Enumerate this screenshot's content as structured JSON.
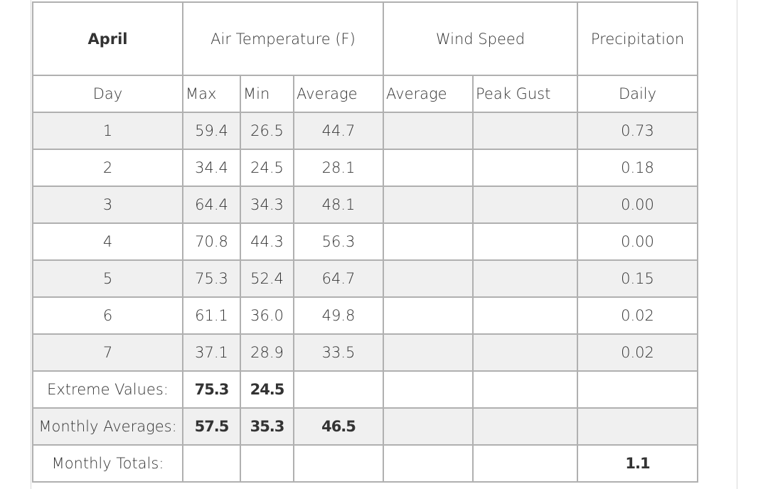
{
  "table": {
    "title": "April",
    "groups": [
      "Air Temperature (F)",
      "Wind Speed",
      "Precipitation"
    ],
    "columns": [
      "Day",
      "Max",
      "Min",
      "Average",
      "Average",
      "Peak Gust",
      "Daily"
    ],
    "rows": [
      {
        "day": "1",
        "max": "59.4",
        "min": "26.5",
        "average": "44.7",
        "daily": "0.73"
      },
      {
        "day": "2",
        "max": "34.4",
        "min": "24.5",
        "average": "28.1",
        "daily": "0.18"
      },
      {
        "day": "3",
        "max": "64.4",
        "min": "34.3",
        "average": "48.1",
        "daily": "0.00"
      },
      {
        "day": "4",
        "max": "70.8",
        "min": "44.3",
        "average": "56.3",
        "daily": "0.00"
      },
      {
        "day": "5",
        "max": "75.3",
        "min": "52.4",
        "average": "64.7",
        "daily": "0.15"
      },
      {
        "day": "6",
        "max": "61.1",
        "min": "36.0",
        "average": "49.8",
        "daily": "0.02"
      },
      {
        "day": "7",
        "max": "37.1",
        "min": "28.9",
        "average": "33.5",
        "daily": "0.02"
      }
    ],
    "summary_rows": [
      {
        "day": "Extreme Values:",
        "max": "75.3",
        "min": "24.5"
      },
      {
        "day": "Monthly Averages:",
        "max": "57.5",
        "min": "35.3",
        "average": "46.5"
      },
      {
        "day": "Monthly Totals:",
        "daily": "1.1"
      }
    ]
  }
}
